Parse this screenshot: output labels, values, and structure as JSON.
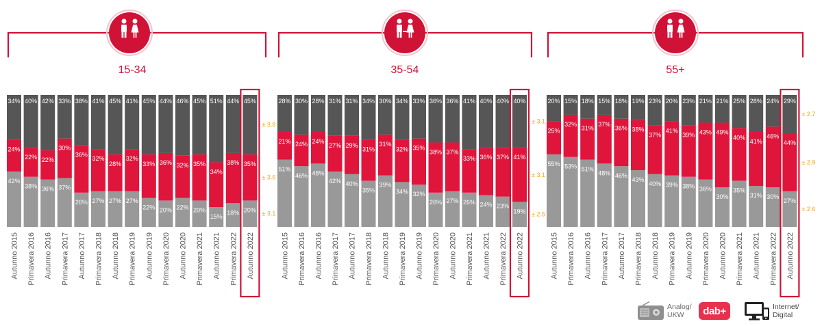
{
  "colors": {
    "internet": "#565656",
    "dab": "#e0153c",
    "analog": "#999999",
    "accent": "#d01237",
    "error": "#f0a81c"
  },
  "legend": {
    "analog": "Analog/\nUKW",
    "dab": "dab+",
    "internet": "Internet/\nDigital",
    "analog_icon": "radio-icon",
    "dab_icon": "dab-plus-logo-icon",
    "internet_icon": "computer-monitor-icon"
  },
  "chart_data": [
    {
      "type": "bar",
      "stacked": true,
      "title": "15-34",
      "icon": "young-people-icon",
      "categories": [
        "Autunno 2015",
        "Primavera 2016",
        "Autunno 2016",
        "Primavera 2017",
        "Autunno 2017",
        "Primavera 2018",
        "Autunno 2018",
        "Primavera 2019",
        "Autunno 2019",
        "Primavera 2020",
        "Autunno 2020",
        "Primavera 2021",
        "Autunno 2021",
        "Primavera 2022",
        "Autunno 2022"
      ],
      "series": [
        {
          "key": "analog",
          "values": [
            42,
            38,
            36,
            37,
            26,
            27,
            27,
            27,
            22,
            20,
            22,
            20,
            15,
            18,
            20
          ],
          "labels": [
            "42%",
            "38%",
            "36%",
            "37%",
            "26%",
            "27%",
            "27%",
            "27%",
            "22%",
            "20%",
            "22%",
            "20%",
            "15%",
            "18%",
            "20%"
          ]
        },
        {
          "key": "dab",
          "values": [
            24,
            22,
            22,
            30,
            36,
            32,
            28,
            32,
            33,
            36,
            32,
            35,
            34,
            38,
            35
          ],
          "labels": [
            "24%",
            "22%",
            "22%",
            "30%",
            "36%",
            "32%",
            "28%",
            "32%",
            "33%",
            "36%",
            "32%",
            "35%",
            "34%",
            "38%",
            "35%"
          ]
        },
        {
          "key": "internet",
          "values": [
            34,
            40,
            42,
            33,
            38,
            41,
            45,
            41,
            45,
            44,
            46,
            45,
            51,
            44,
            45
          ],
          "labels": [
            "34%",
            "40%",
            "42%",
            "33%",
            "38%",
            "41%",
            "45%",
            "41%",
            "45%",
            "44%",
            "46%",
            "45%",
            "51%",
            "44%",
            "45%"
          ]
        }
      ],
      "error_margins": {
        "internet": "± 3.8",
        "dab": "± 3.6",
        "analog": "± 3.1"
      },
      "highlight": "Autunno 2022",
      "ylim": [
        0,
        100
      ]
    },
    {
      "type": "bar",
      "stacked": true,
      "title": "35-54",
      "icon": "couple-icon",
      "categories": [
        "Autunno 2015",
        "Primavera 2016",
        "Autunno 2016",
        "Primavera 2017",
        "Autunno 2017",
        "Primavera 2018",
        "Autunno 2018",
        "Primavera 2019",
        "Autunno 2019",
        "Primavera 2020",
        "Autunno 2020",
        "Primavera 2021",
        "Autunno 2021",
        "Primavera 2022",
        "Autunno 2022"
      ],
      "series": [
        {
          "key": "analog",
          "values": [
            51,
            46,
            48,
            42,
            40,
            35,
            39,
            34,
            32,
            26,
            27,
            26,
            24,
            23,
            19
          ],
          "labels": [
            "51%",
            "46%",
            "48%",
            "42%",
            "40%",
            "35%",
            "39%",
            "34%",
            "32%",
            "26%",
            "27%",
            "26%",
            "24%",
            "23%",
            "19%"
          ]
        },
        {
          "key": "dab",
          "values": [
            21,
            24,
            24,
            27,
            29,
            31,
            31,
            32,
            35,
            38,
            37,
            33,
            36,
            37,
            41
          ],
          "labels": [
            "21%",
            "24%",
            "24%",
            "27%",
            "29%",
            "31%",
            "31%",
            "32%",
            "35%",
            "38%",
            "37%",
            "33%",
            "36%",
            "37%",
            "41%"
          ]
        },
        {
          "key": "internet",
          "values": [
            28,
            30,
            28,
            31,
            31,
            34,
            30,
            34,
            33,
            36,
            36,
            41,
            40,
            40,
            40
          ],
          "labels": [
            "28%",
            "30%",
            "28%",
            "31%",
            "31%",
            "34%",
            "30%",
            "34%",
            "33%",
            "36%",
            "36%",
            "41%",
            "40%",
            "40%",
            "40%"
          ]
        }
      ],
      "error_margins": {
        "internet": "± 3.1",
        "dab": "± 3.1",
        "analog": "± 2.5"
      },
      "highlight": "Autunno 2022",
      "ylim": [
        0,
        100
      ]
    },
    {
      "type": "bar",
      "stacked": true,
      "title": "55+",
      "icon": "elderly-couple-icon",
      "categories": [
        "Autunno 2015",
        "Primavera 2016",
        "Autunno 2016",
        "Primavera 2017",
        "Autunno 2017",
        "Primavera 2018",
        "Autunno 2018",
        "Primavera 2019",
        "Autunno 2019",
        "Primavera 2020",
        "Autunno 2020",
        "Primavera 2021",
        "Autunno 2021",
        "Primavera 2022",
        "Autunno 2022"
      ],
      "series": [
        {
          "key": "analog",
          "values": [
            55,
            53,
            51,
            48,
            46,
            43,
            40,
            39,
            38,
            36,
            30,
            35,
            31,
            30,
            27
          ],
          "labels": [
            "55%",
            "53%",
            "51%",
            "48%",
            "46%",
            "43%",
            "40%",
            "39%",
            "38%",
            "36%",
            "30%",
            "35%",
            "31%",
            "30%",
            "27%"
          ]
        },
        {
          "key": "dab",
          "values": [
            25,
            32,
            31,
            37,
            36,
            38,
            37,
            41,
            39,
            43,
            49,
            40,
            41,
            46,
            44
          ],
          "labels": [
            "25%",
            "32%",
            "31%",
            "37%",
            "36%",
            "38%",
            "37%",
            "41%",
            "39%",
            "43%",
            "49%",
            "40%",
            "41%",
            "46%",
            "44%"
          ]
        },
        {
          "key": "internet",
          "values": [
            20,
            15,
            18,
            15,
            18,
            19,
            23,
            20,
            23,
            21,
            21,
            25,
            28,
            24,
            29
          ],
          "labels": [
            "20%",
            "15%",
            "18%",
            "15%",
            "18%",
            "19%",
            "23%",
            "20%",
            "23%",
            "21%",
            "21%",
            "25%",
            "28%",
            "24%",
            "29%"
          ]
        }
      ],
      "error_margins": {
        "internet": "± 2.7",
        "dab": "± 2.9",
        "analog": "± 2.6"
      },
      "highlight": "Autunno 2022",
      "ylim": [
        0,
        100
      ]
    }
  ]
}
